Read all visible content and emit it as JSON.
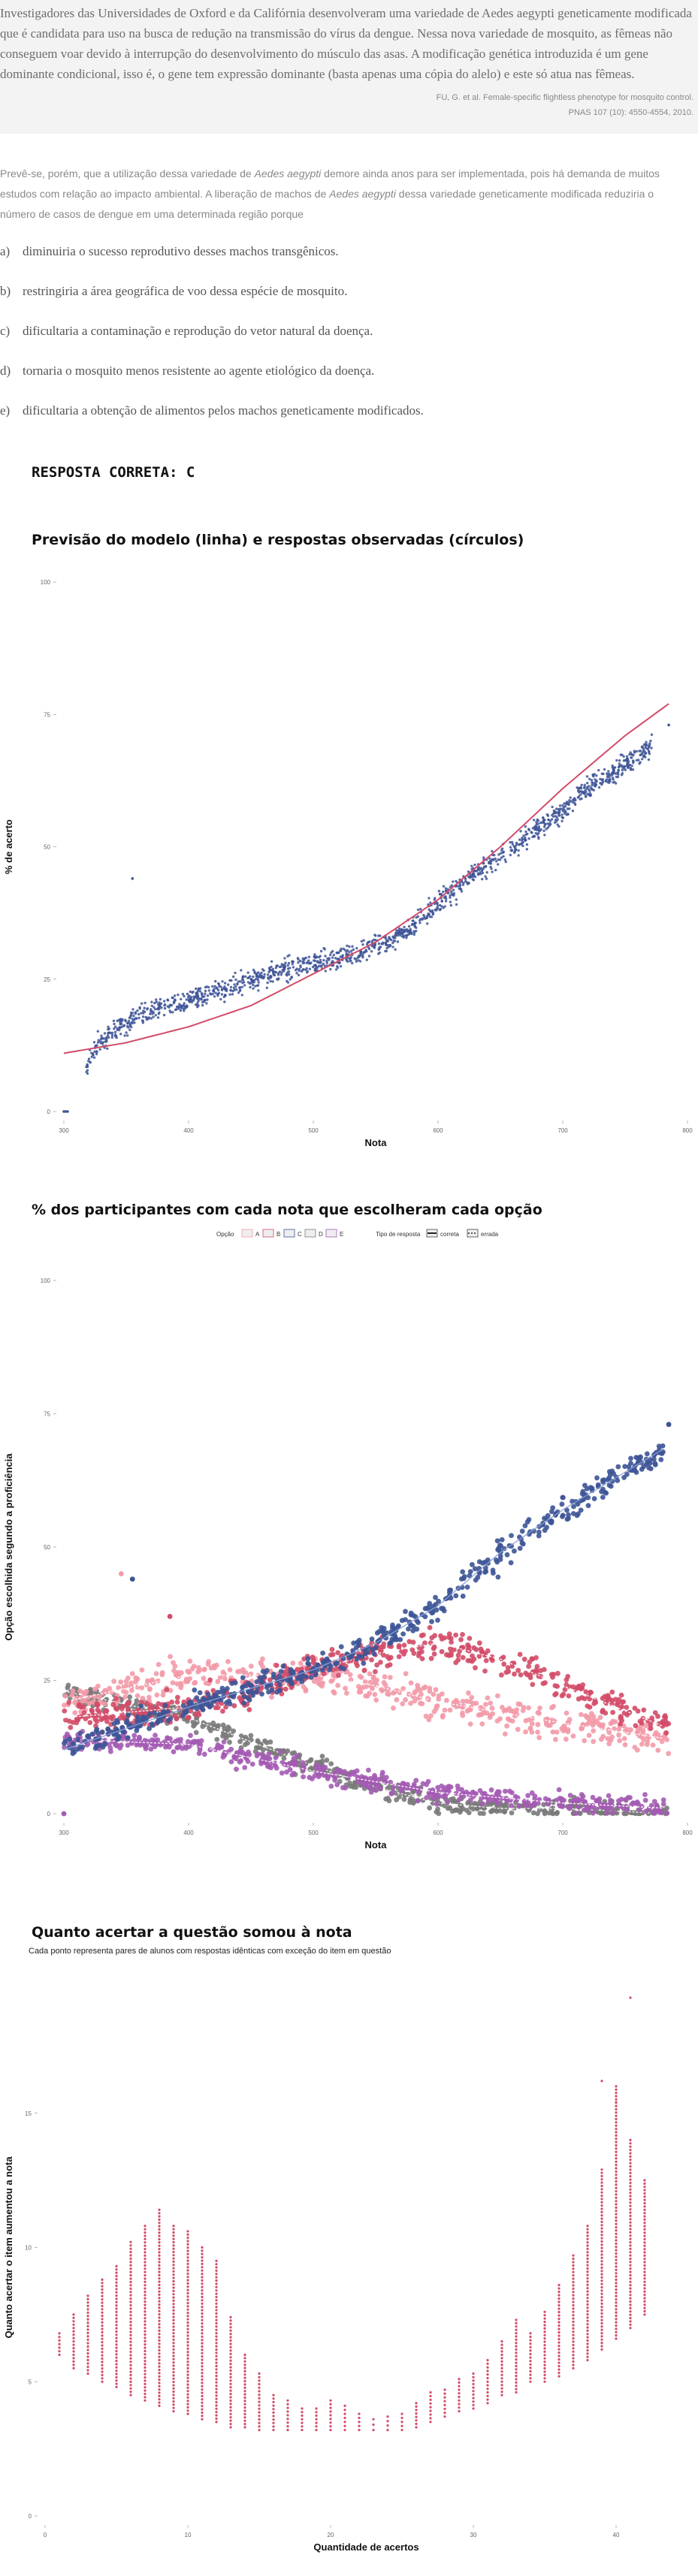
{
  "passage": {
    "text": "Investigadores das Universidades de Oxford e da Califórnia desenvolveram uma variedade de Aedes aegypti geneticamente modificada que é candidata para uso na busca de redução na transmissão do vírus da dengue. Nessa nova variedade de mosquito, as fêmeas não conseguem voar devido à interrupção do desenvolvimento do músculo das asas. A modificação genética introduzida é um gene dominante condicional, isso é, o gene tem expressão dominante (basta apenas uma cópia do alelo) e este só atua nas fêmeas.",
    "ref_line1": "FU, G. et al. Female-specific flightless phenotype for mosquito control.",
    "ref_line2": "PNAS 107 (10): 4550-4554, 2010."
  },
  "stem": {
    "part1": "Prevê-se, porém, que a utilização dessa variedade de ",
    "italic1": "Aedes aegypti",
    "part2": " demore ainda anos para ser implementada, pois há demanda de muitos estudos com relação ao impacto ambiental. A liberação de machos de ",
    "italic2": "Aedes aegypti",
    "part3": " dessa variedade geneticamente modificada reduziria o número de casos de dengue em uma determinada região porque"
  },
  "options": [
    {
      "letter": "a)",
      "text": "diminuiria o sucesso reprodutivo desses machos transgênicos."
    },
    {
      "letter": "b)",
      "text": "restringiria a área geográfica de voo dessa espécie de mosquito."
    },
    {
      "letter": "c)",
      "text": "dificultaria a contaminação e reprodução do vetor natural da doença."
    },
    {
      "letter": "d)",
      "text": "tornaria o mosquito menos resistente ao agente etiológico da doença."
    },
    {
      "letter": "e)",
      "text": "dificultaria a obtenção de alimentos pelos machos geneticamente modificados."
    }
  ],
  "answer": "RESPOSTA CORRETA: C",
  "colors": {
    "blue": "#3d5496",
    "red": "#d34b68",
    "pink": "#f39aa8",
    "gray": "#7a7a7a",
    "purple": "#a45bb4",
    "lightblue": "#8aa0d6"
  },
  "chart_data": [
    {
      "type": "scatter",
      "title": "Previsão do modelo (linha) e respostas observadas (círculos)",
      "xlabel": "Nota",
      "ylabel": "% de acerto",
      "xlim": [
        300,
        800
      ],
      "ylim": [
        0,
        100
      ],
      "x_ticks": [
        "300",
        "400",
        "500",
        "600",
        "700",
        "800"
      ],
      "y_ticks": [
        "0",
        "25",
        "50",
        "75",
        "100"
      ],
      "grid": false,
      "series": [
        {
          "name": "",
          "kind": "points",
          "x": [
            300,
            330,
            360,
            400,
            440,
            480,
            520,
            560,
            580,
            600,
            630,
            660,
            690,
            720,
            740,
            760,
            785
          ],
          "y": [
            0,
            14,
            18,
            21,
            24,
            27,
            29,
            32,
            35,
            39,
            45,
            50,
            55,
            61,
            64,
            67,
            73
          ]
        },
        {
          "name": "",
          "kind": "line",
          "x": [
            300,
            350,
            400,
            450,
            500,
            550,
            600,
            650,
            700,
            750,
            785
          ],
          "y": [
            11,
            13,
            16,
            20,
            26,
            32,
            40,
            50,
            61,
            71,
            77
          ]
        }
      ]
    },
    {
      "type": "scatter",
      "title": "% dos participantes com cada nota que escolheram cada opção",
      "xlabel": "Nota",
      "ylabel": "Opção escolhida segundo a proficiência",
      "xlim": [
        300,
        800
      ],
      "ylim": [
        0,
        100
      ],
      "x_ticks": [
        "300",
        "400",
        "500",
        "600",
        "700",
        "800"
      ],
      "y_ticks": [
        "0",
        "25",
        "50",
        "75",
        "100"
      ],
      "legend_title_option": "Opção",
      "legend_title_type": "Tipo de resposta",
      "legend_types": [
        "correta",
        "errada"
      ],
      "legend_position": "top",
      "series": [
        {
          "name": "A",
          "x": [
            300,
            400,
            500,
            550,
            600,
            650,
            700,
            785
          ],
          "y": [
            21,
            26,
            26,
            24,
            21,
            19,
            17,
            14
          ]
        },
        {
          "name": "B",
          "x": [
            300,
            400,
            500,
            550,
            600,
            650,
            700,
            785
          ],
          "y": [
            18,
            20,
            27,
            30,
            32,
            29,
            24,
            16
          ]
        },
        {
          "name": "C",
          "x": [
            300,
            400,
            500,
            550,
            600,
            650,
            700,
            785
          ],
          "y": [
            12,
            20,
            27,
            32,
            39,
            49,
            57,
            69
          ]
        },
        {
          "name": "D",
          "x": [
            300,
            400,
            500,
            550,
            600,
            650,
            700,
            785
          ],
          "y": [
            23,
            18,
            9,
            5,
            2,
            1,
            1,
            0
          ]
        },
        {
          "name": "E",
          "x": [
            300,
            400,
            500,
            550,
            600,
            650,
            700,
            785
          ],
          "y": [
            14,
            13,
            8,
            6,
            4,
            3,
            2,
            1
          ]
        }
      ]
    },
    {
      "type": "scatter",
      "title": "Quanto acertar a questão somou à nota",
      "subtitle": "Cada ponto representa pares de alunos com respostas idênticas com exceção do item em questão",
      "xlabel": "Quantidade de acertos",
      "ylabel": "Quanto acertar o item aumentou a nota",
      "xlim": [
        0,
        45
      ],
      "ylim": [
        0,
        20
      ],
      "x_ticks": [
        "0",
        "10",
        "20",
        "30",
        "40"
      ],
      "y_ticks": [
        "0",
        "5",
        "10",
        "15"
      ],
      "series": [
        {
          "name": "",
          "x": [
            1,
            2,
            3,
            4,
            5,
            6,
            7,
            8,
            9,
            10,
            11,
            12,
            13,
            14,
            15,
            16,
            17,
            18,
            19,
            20,
            21,
            22,
            23,
            24,
            25,
            26,
            27,
            28,
            29,
            30,
            31,
            32,
            33,
            34,
            35,
            36,
            37,
            38,
            39,
            40,
            41,
            42
          ],
          "y_min": [
            6.0,
            5.5,
            5.3,
            5.0,
            4.8,
            4.5,
            4.3,
            4.1,
            3.9,
            3.8,
            3.6,
            3.5,
            3.3,
            3.3,
            3.2,
            3.2,
            3.2,
            3.2,
            3.2,
            3.2,
            3.2,
            3.2,
            3.2,
            3.2,
            3.2,
            3.3,
            3.5,
            3.7,
            3.9,
            4.0,
            4.2,
            4.5,
            4.6,
            5.0,
            5.0,
            5.2,
            5.5,
            5.8,
            6.2,
            6.6,
            7.0,
            7.5
          ],
          "y_max": [
            6.8,
            7.5,
            8.2,
            8.8,
            9.3,
            10.2,
            10.8,
            11.4,
            10.8,
            10.6,
            10.0,
            9.5,
            7.4,
            6.0,
            5.3,
            4.5,
            4.3,
            4.0,
            4.0,
            4.3,
            4.1,
            3.8,
            3.6,
            3.7,
            3.8,
            4.2,
            4.6,
            4.7,
            5.1,
            5.3,
            5.8,
            6.5,
            7.3,
            6.8,
            7.6,
            8.6,
            9.7,
            10.8,
            12.9,
            16.0,
            14.0,
            12.5
          ]
        }
      ],
      "outliers": [
        {
          "x": 39,
          "y": 16.2
        },
        {
          "x": 40,
          "y": 15.4
        },
        {
          "x": 41,
          "y": 19.3
        }
      ]
    }
  ]
}
